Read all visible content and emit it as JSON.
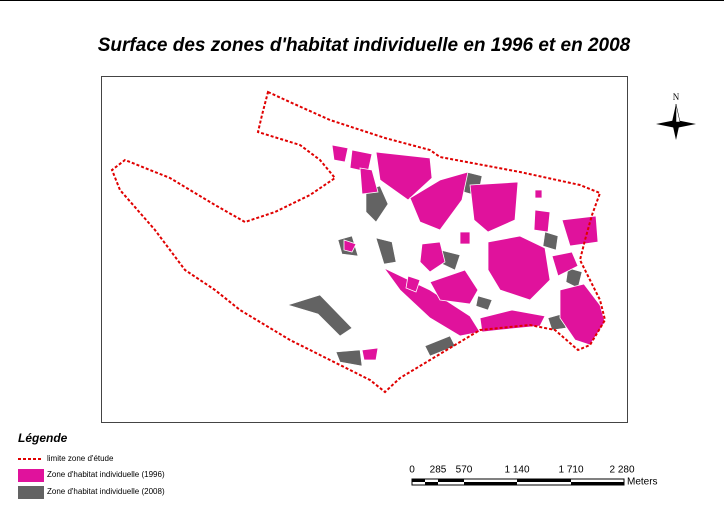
{
  "title": "Surface des zones d'habitat individuelle en 1996 et en 2008",
  "north_arrow": {
    "label": "N"
  },
  "legend": {
    "title": "Légende",
    "items": [
      "limite zone d'étude",
      "Zone d'habitat individuelle (1996)",
      "Zone d'habitat individuelle (2008)"
    ]
  },
  "scale_bar": {
    "labels": [
      "0",
      "285",
      "570",
      "1 140",
      "1 710",
      "2 280"
    ],
    "unit": "Meters"
  }
}
